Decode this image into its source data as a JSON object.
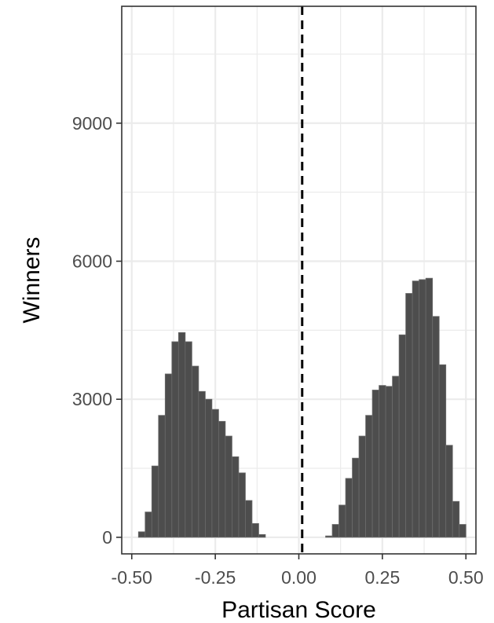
{
  "chart_data": {
    "type": "bar",
    "subtype": "histogram",
    "xlabel": "Partisan Score",
    "ylabel": "Winners",
    "xlim": [
      -0.53,
      0.53
    ],
    "ylim": [
      -360,
      11540
    ],
    "x_ticks": [
      -0.5,
      -0.25,
      0.0,
      0.25,
      0.5
    ],
    "x_tick_labels": [
      "-0.50",
      "-0.25",
      "0.00",
      "0.25",
      "0.50"
    ],
    "y_ticks": [
      0,
      3000,
      6000,
      9000
    ],
    "y_tick_labels": [
      "0",
      "3000",
      "6000",
      "9000"
    ],
    "grid": true,
    "reference_line": {
      "x": 0.01,
      "style": "dashed"
    },
    "bin_width": 0.02,
    "bins": [
      {
        "x": -0.47,
        "y": 120
      },
      {
        "x": -0.45,
        "y": 550
      },
      {
        "x": -0.43,
        "y": 1550
      },
      {
        "x": -0.41,
        "y": 2650
      },
      {
        "x": -0.39,
        "y": 3550
      },
      {
        "x": -0.37,
        "y": 4250
      },
      {
        "x": -0.35,
        "y": 4450
      },
      {
        "x": -0.33,
        "y": 4250
      },
      {
        "x": -0.31,
        "y": 3720
      },
      {
        "x": -0.29,
        "y": 3170
      },
      {
        "x": -0.27,
        "y": 3000
      },
      {
        "x": -0.25,
        "y": 2780
      },
      {
        "x": -0.23,
        "y": 2520
      },
      {
        "x": -0.21,
        "y": 2200
      },
      {
        "x": -0.19,
        "y": 1750
      },
      {
        "x": -0.17,
        "y": 1400
      },
      {
        "x": -0.15,
        "y": 800
      },
      {
        "x": -0.13,
        "y": 300
      },
      {
        "x": -0.11,
        "y": 60
      },
      {
        "x": 0.09,
        "y": 30
      },
      {
        "x": 0.11,
        "y": 280
      },
      {
        "x": 0.13,
        "y": 700
      },
      {
        "x": 0.15,
        "y": 1280
      },
      {
        "x": 0.17,
        "y": 1720
      },
      {
        "x": 0.19,
        "y": 2200
      },
      {
        "x": 0.21,
        "y": 2650
      },
      {
        "x": 0.23,
        "y": 3200
      },
      {
        "x": 0.25,
        "y": 3300
      },
      {
        "x": 0.27,
        "y": 3280
      },
      {
        "x": 0.29,
        "y": 3500
      },
      {
        "x": 0.31,
        "y": 4400
      },
      {
        "x": 0.33,
        "y": 5300
      },
      {
        "x": 0.35,
        "y": 5570
      },
      {
        "x": 0.37,
        "y": 5600
      },
      {
        "x": 0.39,
        "y": 5630
      },
      {
        "x": 0.41,
        "y": 4800
      },
      {
        "x": 0.43,
        "y": 3750
      },
      {
        "x": 0.45,
        "y": 2000
      },
      {
        "x": 0.47,
        "y": 780
      },
      {
        "x": 0.49,
        "y": 280
      }
    ],
    "colors": {
      "bar_fill": "#4d4d4d",
      "bar_border": "#6b6b6b",
      "grid": "#ebebeb",
      "panel_border": "#333333",
      "reference_line": "#000000"
    }
  }
}
